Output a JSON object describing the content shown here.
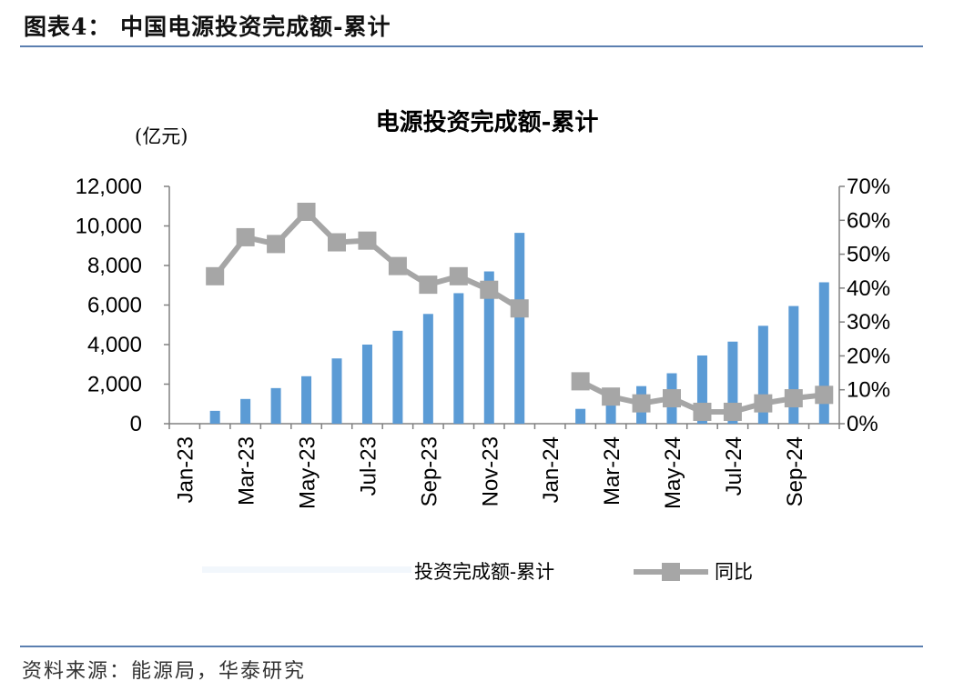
{
  "header": {
    "figure_title": "图表4：  中国电源投资完成额-累计"
  },
  "footer": {
    "source": "资料来源：能源局，华泰研究"
  },
  "chart_data": {
    "type": "bar",
    "title": "电源投资完成额-累计",
    "y_unit": "(亿元)",
    "x": [
      "Jan-23",
      "Feb-23",
      "Mar-23",
      "Apr-23",
      "May-23",
      "Jun-23",
      "Jul-23",
      "Aug-23",
      "Sep-23",
      "Oct-23",
      "Nov-23",
      "Dec-23",
      "Jan-24",
      "Feb-24",
      "Mar-24",
      "Apr-24",
      "May-24",
      "Jun-24",
      "Jul-24",
      "Aug-24",
      "Sep-24",
      "Oct-24"
    ],
    "x_tick_labels": [
      "Jan-23",
      "Mar-23",
      "May-23",
      "Jul-23",
      "Sep-23",
      "Nov-23",
      "Jan-24",
      "Mar-24",
      "May-24",
      "Jul-24",
      "Sep-24"
    ],
    "series": [
      {
        "name": "投资完成额-累计",
        "kind": "bar",
        "axis": "left",
        "color": "#5b9bd5",
        "values": [
          null,
          650,
          1250,
          1800,
          2400,
          3300,
          4000,
          4700,
          5550,
          6600,
          7700,
          9650,
          null,
          750,
          1400,
          1900,
          2550,
          3450,
          4150,
          4950,
          5950,
          7150
        ]
      },
      {
        "name": "同比",
        "kind": "line",
        "axis": "right",
        "color": "#a6a6a6",
        "values": [
          null,
          43.5,
          55,
          53,
          62.5,
          53.5,
          54,
          46.5,
          41,
          43.5,
          39.5,
          34,
          null,
          12.5,
          8,
          6,
          7.5,
          3.5,
          3.5,
          6,
          7.5,
          8.5
        ]
      }
    ],
    "y_left": {
      "min": 0,
      "max": 12000,
      "ticks": [
        "0",
        "2,000",
        "4,000",
        "6,000",
        "8,000",
        "10,000",
        "12,000"
      ]
    },
    "y_right": {
      "min": 0,
      "max": 70,
      "ticks": [
        "0%",
        "10%",
        "20%",
        "30%",
        "40%",
        "50%",
        "60%",
        "70%"
      ]
    },
    "legend": {
      "placement": "bottom",
      "items": [
        "投资完成额-累计",
        "同比"
      ]
    },
    "grid": false
  }
}
